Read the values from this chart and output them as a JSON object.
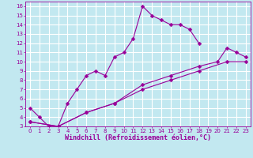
{
  "xlabel": "Windchill (Refroidissement éolien,°C)",
  "ylabel": "",
  "xlim": [
    -0.5,
    23.5
  ],
  "ylim": [
    3,
    16.5
  ],
  "xticks": [
    0,
    1,
    2,
    3,
    4,
    5,
    6,
    7,
    8,
    9,
    10,
    11,
    12,
    13,
    14,
    15,
    16,
    17,
    18,
    19,
    20,
    21,
    22,
    23
  ],
  "yticks": [
    3,
    4,
    5,
    6,
    7,
    8,
    9,
    10,
    11,
    12,
    13,
    14,
    15,
    16
  ],
  "bg_color": "#c2e8f0",
  "grid_color": "#ffffff",
  "line_color": "#990099",
  "line1_x": [
    0,
    1,
    2,
    3,
    4,
    5,
    6,
    7,
    8,
    9,
    10,
    11,
    12,
    13,
    14,
    15,
    16,
    17,
    18
  ],
  "line1_y": [
    5.0,
    4.0,
    3.0,
    3.0,
    5.5,
    7.0,
    8.5,
    9.0,
    8.5,
    10.5,
    11.0,
    12.5,
    16.0,
    15.0,
    14.5,
    14.0,
    14.0,
    13.5,
    12.0
  ],
  "line2_x": [
    0,
    3,
    6,
    9,
    12,
    15,
    18,
    20,
    21,
    22,
    23
  ],
  "line2_y": [
    3.5,
    3.0,
    4.5,
    5.5,
    7.5,
    8.5,
    9.5,
    10.0,
    11.5,
    11.0,
    10.5
  ],
  "line3_x": [
    0,
    3,
    6,
    9,
    12,
    15,
    18,
    21,
    23
  ],
  "line3_y": [
    3.5,
    3.0,
    4.5,
    5.5,
    7.0,
    8.0,
    9.0,
    10.0,
    10.0
  ],
  "marker": "D",
  "marker_size": 2.5,
  "tick_fontsize": 5.0,
  "xlabel_fontsize": 6.0,
  "linewidth": 0.8
}
